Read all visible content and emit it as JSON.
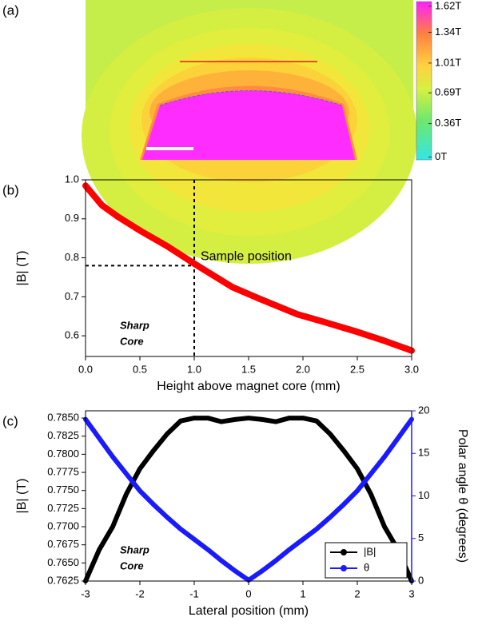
{
  "chart_data": [
    {
      "type": "field-map",
      "panel_label": "(a)",
      "zlim": [
        -0.03,
        1.67
      ],
      "zticks": [
        {
          "value": 1.62,
          "label": "1.62T"
        },
        {
          "value": 1.34,
          "label": "1.34T"
        },
        {
          "value": 1.01,
          "label": "1.01T"
        },
        {
          "value": 0.69,
          "label": "0.69T"
        },
        {
          "value": 0.36,
          "label": "0.36T"
        },
        {
          "value": 0,
          "label": "0T"
        }
      ]
    },
    {
      "type": "line",
      "panel_label": "(b)",
      "x_label": "Height above magnet core (mm)",
      "y_label": "|B| (T)",
      "x": [
        0,
        0.15,
        0.3,
        0.5,
        0.75,
        1.0,
        1.35,
        1.6,
        1.95,
        2.2,
        2.5,
        2.75,
        3.0
      ],
      "values": [
        0.985,
        0.935,
        0.905,
        0.87,
        0.83,
        0.785,
        0.725,
        0.695,
        0.655,
        0.635,
        0.61,
        0.587,
        0.562
      ],
      "color": "#ff0000",
      "xlim": [
        0,
        3
      ],
      "ylim": [
        0.547,
        1.0
      ],
      "xticks": [
        {
          "value": 0,
          "label": "0.0"
        },
        0.5,
        {
          "value": 1,
          "label": "1.0"
        },
        1.5,
        {
          "value": 2,
          "label": "2.0"
        },
        2.5,
        {
          "value": 3,
          "label": "3.0"
        }
      ],
      "yticks": [
        0.6,
        0.7,
        0.8,
        0.9,
        {
          "value": 1,
          "label": "1.0"
        }
      ],
      "reference_x": 1.0,
      "reference_y": 0.78,
      "annotation": "Sample position",
      "core_label": [
        "Sharp",
        "Core"
      ]
    },
    {
      "type": "line",
      "panel_label": "(c)",
      "x_label": "Lateral position (mm)",
      "y_label": "|B| (T)",
      "y2_label": "Polar angle θ (degrees)",
      "x": [
        -3,
        -2.75,
        -2.5,
        -2.25,
        -2,
        -1.75,
        -1.5,
        -1.25,
        -1,
        -0.75,
        -0.5,
        -0.25,
        0,
        0.25,
        0.5,
        0.75,
        1,
        1.25,
        1.5,
        1.75,
        2,
        2.25,
        2.5,
        2.75,
        3
      ],
      "series": [
        {
          "name": "|B|",
          "color": "#000000",
          "values": [
            0.7625,
            0.7668,
            0.77,
            0.7745,
            0.778,
            0.7805,
            0.7828,
            0.7846,
            0.785,
            0.785,
            0.7845,
            0.7848,
            0.785,
            0.7848,
            0.7845,
            0.785,
            0.785,
            0.7846,
            0.7828,
            0.7805,
            0.778,
            0.7745,
            0.77,
            0.7668,
            0.7625
          ]
        },
        {
          "name": "θ",
          "color": "#1a1aff",
          "axis": "y2",
          "values": [
            19,
            16.8,
            14.6,
            12.6,
            10.6,
            9.0,
            7.5,
            6.1,
            4.9,
            3.7,
            2.4,
            1.2,
            0.1,
            1.2,
            2.4,
            3.7,
            4.9,
            6.1,
            7.5,
            9.0,
            10.6,
            12.6,
            14.6,
            16.8,
            19
          ]
        }
      ],
      "xlim": [
        -3,
        3
      ],
      "ylim": [
        0.7625,
        0.786
      ],
      "y2lim": [
        0,
        20
      ],
      "xticks": [
        -3,
        -2,
        -1,
        0,
        1,
        2,
        3
      ],
      "yticks": [
        0.7625,
        {
          "value": 0.765,
          "label": "0.7650"
        },
        0.7675,
        {
          "value": 0.77,
          "label": "0.7700"
        },
        0.7725,
        {
          "value": 0.775,
          "label": "0.7750"
        },
        0.7775,
        {
          "value": 0.78,
          "label": "0.7800"
        },
        0.7825,
        {
          "value": 0.785,
          "label": "0.7850"
        }
      ],
      "y2ticks": [
        0,
        5,
        10,
        15,
        20
      ],
      "legend": "lower right",
      "core_label": [
        "Sharp",
        "Core"
      ]
    }
  ]
}
